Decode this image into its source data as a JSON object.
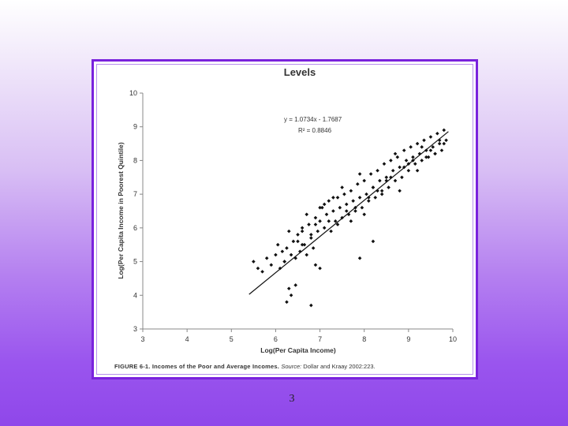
{
  "chart_data": {
    "type": "scatter",
    "title": "Levels",
    "xlabel": "Log(Per Capita Income)",
    "ylabel": "Log(Per Capita Income in Poorest Quintile)",
    "xlim": [
      3,
      10
    ],
    "ylim": [
      3,
      10
    ],
    "x_ticks": [
      "3",
      "4",
      "5",
      "6",
      "7",
      "8",
      "9",
      "10"
    ],
    "y_ticks": [
      "3",
      "4",
      "5",
      "6",
      "7",
      "8",
      "9",
      "10"
    ],
    "grid": false,
    "trendline": {
      "slope": 1.0734,
      "intercept": -1.7687,
      "x_range": [
        5.4,
        9.9
      ]
    },
    "annotations": {
      "equation": "y = 1.0734x - 1.7687",
      "r_squared": "R² = 0.8846"
    },
    "colors": {
      "points": "#111111",
      "line": "#111111"
    },
    "series": [
      {
        "x": [
          5.5,
          5.6,
          5.7,
          5.8,
          5.9,
          6.0,
          6.05,
          6.1,
          6.15,
          6.2,
          6.25,
          6.3,
          6.35,
          6.4,
          6.45,
          6.5,
          6.55,
          6.6,
          6.65,
          6.7,
          6.75,
          6.8,
          6.85,
          6.9,
          6.95,
          7.0,
          7.05,
          7.1,
          7.15,
          7.2,
          7.25,
          7.3,
          7.35,
          7.4,
          7.45,
          7.5,
          7.55,
          7.6,
          7.65,
          7.7,
          7.75,
          7.8,
          7.85,
          7.9,
          7.95,
          8.0,
          8.05,
          8.1,
          8.15,
          8.2,
          8.25,
          8.3,
          8.35,
          8.4,
          8.45,
          8.5,
          8.55,
          8.6,
          8.65,
          8.7,
          8.75,
          8.8,
          8.85,
          8.9,
          8.95,
          9.0,
          9.05,
          9.1,
          9.15,
          9.2,
          9.25,
          9.3,
          9.35,
          9.4,
          9.45,
          9.5,
          9.55,
          9.6,
          9.65,
          9.7,
          9.75,
          9.8,
          9.85,
          6.3,
          6.35,
          6.45,
          6.25,
          6.8,
          6.9,
          7.0,
          7.9,
          8.2,
          6.6,
          6.7,
          6.9,
          7.1,
          7.3,
          7.5,
          7.7,
          7.9,
          8.1,
          8.3,
          8.5,
          8.7,
          8.9,
          9.1,
          9.3,
          9.5,
          9.7,
          6.5,
          6.8,
          7.2,
          7.6,
          8.0,
          8.4,
          8.8,
          9.2,
          9.6,
          7.4,
          7.8,
          8.2,
          8.6,
          9.0,
          9.4,
          9.8,
          6.2,
          6.6,
          7.0
        ],
        "y": [
          5.0,
          4.8,
          4.7,
          5.1,
          4.9,
          5.2,
          5.5,
          4.8,
          5.3,
          5.0,
          5.4,
          5.9,
          5.2,
          5.6,
          5.1,
          5.8,
          5.3,
          6.0,
          5.5,
          5.2,
          6.1,
          5.7,
          5.4,
          6.3,
          5.9,
          6.2,
          6.6,
          6.0,
          6.4,
          6.8,
          5.9,
          6.5,
          6.2,
          6.9,
          6.6,
          6.3,
          7.0,
          6.7,
          6.4,
          7.1,
          6.8,
          6.5,
          7.3,
          6.9,
          6.6,
          7.4,
          7.0,
          6.8,
          7.6,
          7.2,
          6.9,
          7.7,
          7.4,
          7.1,
          7.9,
          7.5,
          7.2,
          8.0,
          7.7,
          7.4,
          8.1,
          7.8,
          7.5,
          8.3,
          8.0,
          7.7,
          8.4,
          8.1,
          7.9,
          8.5,
          8.2,
          8.0,
          8.6,
          8.3,
          8.1,
          8.7,
          8.4,
          8.2,
          8.8,
          8.5,
          8.3,
          8.9,
          8.6,
          4.2,
          4.0,
          4.3,
          3.8,
          3.7,
          4.9,
          4.8,
          5.1,
          5.6,
          5.9,
          6.4,
          6.1,
          6.7,
          6.9,
          7.2,
          6.2,
          7.6,
          6.9,
          7.1,
          7.4,
          8.2,
          7.8,
          8.0,
          8.4,
          8.3,
          8.6,
          5.6,
          5.8,
          6.2,
          6.5,
          6.4,
          7.0,
          7.1,
          7.7,
          8.2,
          6.1,
          6.6,
          7.2,
          7.5,
          7.9,
          8.1,
          8.5,
          5.0,
          5.5,
          6.6
        ]
      }
    ]
  },
  "caption": {
    "figure_label": "FIGURE 6-1.",
    "title": " Incomes of the Poor and Average Incomes. ",
    "source_label": "Source:",
    "source": " Dollar and Kraay 2002:223."
  },
  "slide": {
    "page_number": "3"
  }
}
